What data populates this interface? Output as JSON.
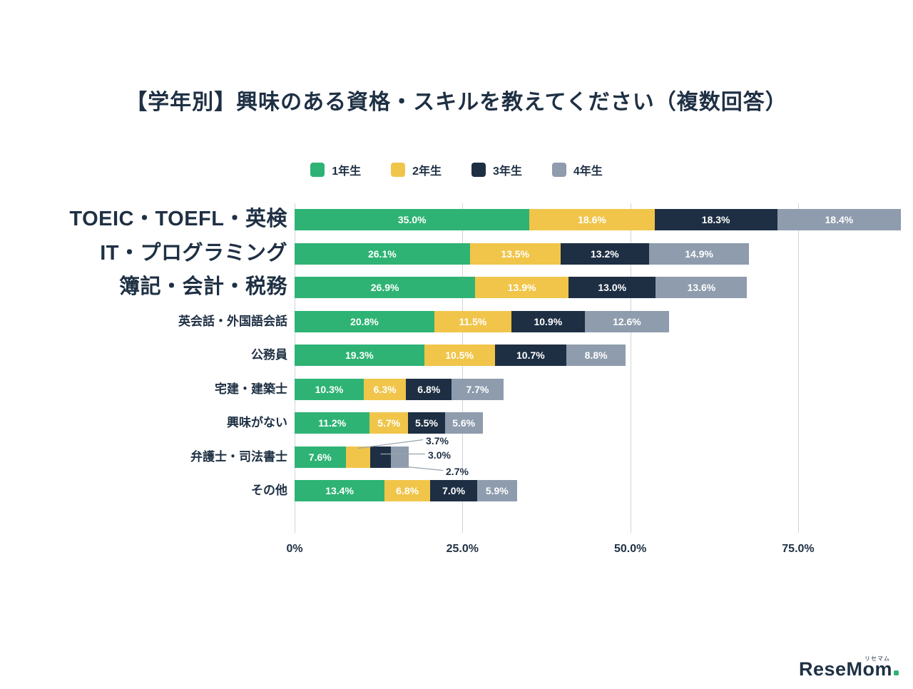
{
  "page": {
    "background": "#ffffff"
  },
  "footer": {
    "logo_text": "ReseMom",
    "logo_sub": "リセマム"
  },
  "chart_data": {
    "type": "bar",
    "orientation": "horizontal",
    "stacked": true,
    "title": "【学年別】興味のある資格・スキルを教えてください（複数回答）",
    "legend": [
      "1年生",
      "2年生",
      "3年生",
      "4年生"
    ],
    "legend_position": "top",
    "series_colors": [
      "#2eb374",
      "#f0c54a",
      "#1e2f44",
      "#8e9cad"
    ],
    "grid": "vertical",
    "grid_color": "#cfd4da",
    "text_color": "#1f3044",
    "value_label_color": "#ffffff",
    "categories": [
      "TOEIC・TOEFL・英検",
      "IT・プログラミング",
      "簿記・会計・税務",
      "英会話・外国語会話",
      "公務員",
      "宅建・建築士",
      "興味がない",
      "弁護士・司法書士",
      "その他"
    ],
    "category_label_size": [
      "large",
      "large",
      "large",
      "small",
      "small",
      "small",
      "small",
      "small",
      "small"
    ],
    "series": [
      {
        "name": "1年生",
        "values": [
          35.0,
          26.1,
          26.9,
          20.8,
          19.3,
          10.3,
          11.2,
          7.6,
          13.4
        ]
      },
      {
        "name": "2年生",
        "values": [
          18.6,
          13.5,
          13.9,
          11.5,
          10.5,
          6.3,
          5.7,
          3.7,
          6.8
        ]
      },
      {
        "name": "3年生",
        "values": [
          18.3,
          13.2,
          13.0,
          10.9,
          10.7,
          6.8,
          5.5,
          3.0,
          7.0
        ]
      },
      {
        "name": "4年生",
        "values": [
          18.4,
          14.9,
          13.6,
          12.6,
          8.8,
          7.7,
          5.6,
          2.7,
          5.9
        ]
      }
    ],
    "x_ticks": [
      {
        "label": "0%",
        "value": 0
      },
      {
        "label": "25.0%",
        "value": 25
      },
      {
        "label": "50.0%",
        "value": 50
      },
      {
        "label": "75.0%",
        "value": 75
      }
    ],
    "xlim": [
      0,
      90.3
    ],
    "value_label_format": "one_decimal_percent",
    "callout_category": "弁護士・司法書士",
    "callout_values": [
      "3.7%",
      "3.0%",
      "2.7%"
    ]
  }
}
